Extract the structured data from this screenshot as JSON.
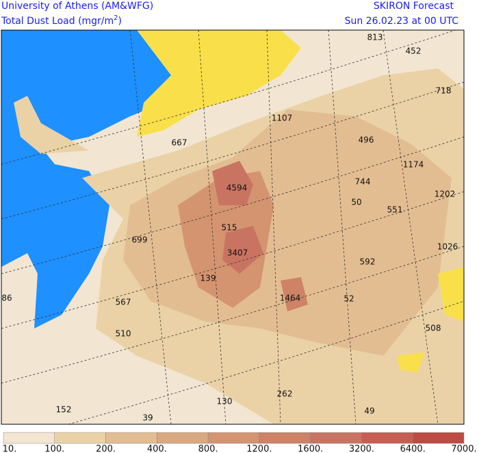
{
  "header": {
    "institution": "University of Athens (AM&WFG)",
    "product_prefix": "Total Dust Load (mgr/m",
    "product_superscript": "2",
    "product_suffix": ")",
    "model": "SKIRON Forecast",
    "valid_time": "Sun 26.02.23 at 00 UTC"
  },
  "map": {
    "labels": [
      "813",
      "452",
      "718",
      "1107",
      "667",
      "496",
      "1174",
      "4594",
      "744",
      "50",
      "1202",
      "551",
      "515",
      "699",
      "1026",
      "3407",
      "592",
      "139",
      "1464",
      "52",
      "86",
      "567",
      "510",
      "508",
      "262",
      "130",
      "152",
      "49",
      "39"
    ]
  },
  "colorbar": {
    "labels": [
      "10.",
      "100.",
      "200.",
      "400.",
      "800.",
      "1200.",
      "1600.",
      "3200.",
      "6400.",
      "7000."
    ],
    "colors": [
      "#f2e6d2",
      "#ead2a6",
      "#e3bd92",
      "#daa880",
      "#d49470",
      "#ce8266",
      "#c97462",
      "#c65e52",
      "#bf4a44"
    ]
  }
}
